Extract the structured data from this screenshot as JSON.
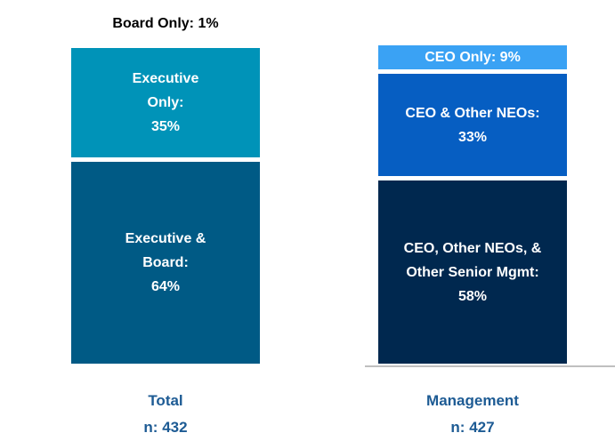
{
  "chart_data": {
    "type": "stacked_bar",
    "bars": [
      {
        "category": "Total",
        "n_label": "n: 432",
        "segments": [
          {
            "name": "Executive & Board:",
            "value": 64,
            "value_label": "64%",
            "color": "#005a85"
          },
          {
            "name": "Executive Only:",
            "value": 35,
            "value_label": "35%",
            "color": "#0093b8"
          },
          {
            "name": "Board Only:",
            "value": 1,
            "value_label": "1%",
            "color": "#ffffff"
          }
        ]
      },
      {
        "category": "Management",
        "n_label": "n: 427",
        "segments": [
          {
            "name": "CEO, Other NEOs, & Other Senior Mgmt:",
            "value": 58,
            "value_label": "58%",
            "color": "#00284f"
          },
          {
            "name": "CEO & Other NEOs:",
            "value": 33,
            "value_label": "33%",
            "color": "#065ec2"
          },
          {
            "name": "CEO Only:",
            "value": 9,
            "value_label": "9%",
            "color": "#3aa2f4"
          }
        ]
      }
    ]
  }
}
